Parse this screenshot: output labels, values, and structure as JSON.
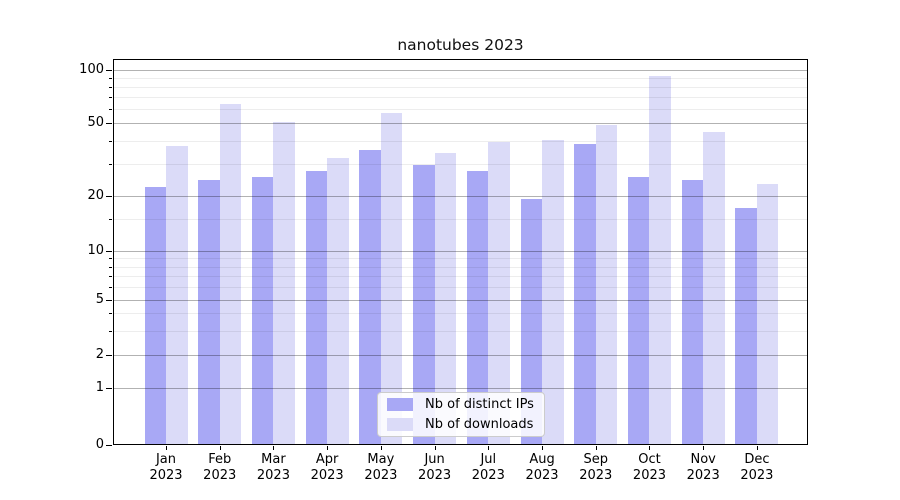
{
  "title": "nanotubes 2023",
  "chart_data": {
    "type": "bar",
    "title": "nanotubes 2023",
    "categories": [
      "Jan 2023",
      "Feb 2023",
      "Mar 2023",
      "Apr 2023",
      "May 2023",
      "Jun 2023",
      "Jul 2023",
      "Aug 2023",
      "Sep 2023",
      "Oct 2023",
      "Nov 2023",
      "Dec 2023"
    ],
    "series": [
      {
        "name": "Nb of distinct IPs",
        "color": "#a8a8f5",
        "values": [
          22,
          24,
          25,
          27,
          35,
          29,
          27,
          19,
          38,
          25,
          24,
          17
        ]
      },
      {
        "name": "Nb of downloads",
        "color": "#dbdbf8",
        "values": [
          37,
          63,
          50,
          32,
          56,
          34,
          39,
          40,
          48,
          91,
          44,
          23
        ]
      }
    ],
    "xlabel": "",
    "ylabel": "",
    "yscale": "symlog",
    "yticks": [
      0,
      1,
      2,
      5,
      10,
      20,
      50,
      100
    ],
    "minor_yticks": [
      3,
      4,
      6,
      7,
      8,
      9,
      15,
      30,
      40,
      60,
      70,
      80,
      90
    ],
    "ylim": [
      0,
      115
    ],
    "grid": true,
    "legend_position": "lower center"
  },
  "colors": {
    "background": "#ffffff",
    "axis": "#000000",
    "grid_major": "#b0b0b0",
    "grid_minor": "#ededed",
    "legend_border": "#cccccc"
  }
}
